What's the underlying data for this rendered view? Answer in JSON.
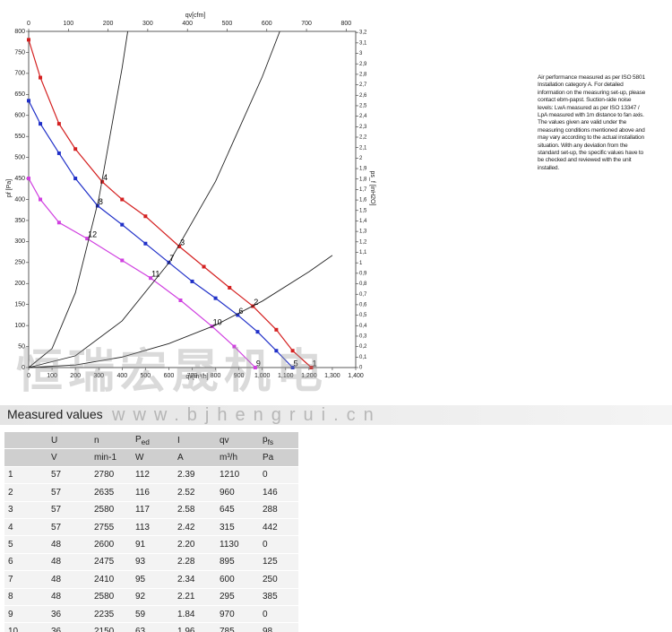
{
  "chart_data": {
    "type": "line",
    "xlabel": "qv[m³/h]",
    "x2label": "qv[cfm]",
    "ylabel": "pf [Pa]",
    "y2label": "ps_f [inH2O]",
    "xlim": [
      0,
      1400
    ],
    "xticks": [
      0,
      100,
      200,
      300,
      400,
      500,
      600,
      700,
      800,
      900,
      {
        "value": 1000,
        "label": "1,000"
      },
      {
        "value": 1100,
        "label": "1,100"
      },
      {
        "value": 1200,
        "label": "1,200"
      },
      {
        "value": 1300,
        "label": "1,300"
      },
      {
        "value": 1400,
        "label": "1,400"
      }
    ],
    "x2lim": [
      0,
      824
    ],
    "x2ticks": [
      0,
      100,
      200,
      300,
      400,
      500,
      600,
      700,
      800
    ],
    "ylim": [
      0,
      800
    ],
    "yticks": [
      0,
      50,
      100,
      150,
      200,
      250,
      300,
      350,
      400,
      450,
      500,
      550,
      600,
      650,
      700,
      750,
      800
    ],
    "y2lim": [
      0,
      3.21
    ],
    "y2ticks": [
      0,
      {
        "value": 0.1,
        "label": "0,1"
      },
      {
        "value": 0.2,
        "label": "0,2"
      },
      {
        "value": 0.3,
        "label": "0,3"
      },
      {
        "value": 0.4,
        "label": "0,4"
      },
      {
        "value": 0.5,
        "label": "0,5"
      },
      {
        "value": 0.6,
        "label": "0,6"
      },
      {
        "value": 0.7,
        "label": "0,7"
      },
      {
        "value": 0.8,
        "label": "0,8"
      },
      {
        "value": 0.9,
        "label": "0,9"
      },
      1,
      {
        "value": 1.1,
        "label": "1,1"
      },
      {
        "value": 1.2,
        "label": "1,2"
      },
      {
        "value": 1.3,
        "label": "1,3"
      },
      {
        "value": 1.4,
        "label": "1,4"
      },
      {
        "value": 1.5,
        "label": "1,5"
      },
      {
        "value": 1.6,
        "label": "1,6"
      },
      {
        "value": 1.7,
        "label": "1,7"
      },
      {
        "value": 1.8,
        "label": "1,8"
      },
      {
        "value": 1.9,
        "label": "1,9"
      },
      2,
      {
        "value": 2.1,
        "label": "2,1"
      },
      {
        "value": 2.2,
        "label": "2,2"
      },
      {
        "value": 2.3,
        "label": "2,3"
      },
      {
        "value": 2.4,
        "label": "2,4"
      },
      {
        "value": 2.5,
        "label": "2,5"
      },
      {
        "value": 2.6,
        "label": "2,6"
      },
      {
        "value": 2.7,
        "label": "2,7"
      },
      {
        "value": 2.8,
        "label": "2,8"
      },
      {
        "value": 2.9,
        "label": "2,9"
      },
      3,
      {
        "value": 3.1,
        "label": "3,1"
      },
      {
        "value": 3.2,
        "label": "3,2"
      }
    ],
    "series": [
      {
        "color": "#d42020",
        "markers": true,
        "x": [
          0,
          50,
          130,
          200,
          315,
          400,
          500,
          645,
          750,
          860,
          960,
          1060,
          1130,
          1210
        ],
        "values": [
          780,
          690,
          580,
          520,
          442,
          400,
          360,
          288,
          240,
          190,
          146,
          90,
          40,
          0
        ]
      },
      {
        "color": "#2030c8",
        "markers": true,
        "x": [
          0,
          50,
          130,
          200,
          295,
          400,
          500,
          600,
          700,
          800,
          895,
          980,
          1060,
          1130
        ],
        "values": [
          635,
          580,
          510,
          450,
          385,
          340,
          295,
          250,
          205,
          165,
          125,
          85,
          40,
          0
        ]
      },
      {
        "color": "#d040e0",
        "markers": true,
        "x": [
          0,
          50,
          130,
          250,
          400,
          522,
          650,
          785,
          880,
          970
        ],
        "values": [
          450,
          400,
          345,
          307,
          255,
          213,
          160,
          98,
          50,
          0
        ]
      },
      {
        "color": "#222222",
        "markers": false,
        "x": [
          0,
          100,
          200,
          300,
          400,
          424
        ],
        "values": [
          0,
          45,
          178,
          401,
          713,
          800
        ]
      },
      {
        "color": "#222222",
        "markers": false,
        "x": [
          0,
          200,
          400,
          600,
          800,
          1000,
          1075
        ],
        "values": [
          0,
          28,
          111,
          249,
          443,
          692,
          800
        ]
      },
      {
        "color": "#222222",
        "markers": false,
        "x": [
          0,
          200,
          400,
          600,
          800,
          1000,
          1200,
          1300
        ],
        "values": [
          0,
          6,
          25,
          57,
          101,
          158,
          228,
          267
        ]
      }
    ],
    "points": [
      {
        "label": "1",
        "x": 1210,
        "y": 0
      },
      {
        "label": "2",
        "x": 960,
        "y": 146
      },
      {
        "label": "3",
        "x": 645,
        "y": 288
      },
      {
        "label": "4",
        "x": 315,
        "y": 442
      },
      {
        "label": "5",
        "x": 1130,
        "y": 0
      },
      {
        "label": "6",
        "x": 895,
        "y": 125
      },
      {
        "label": "7",
        "x": 600,
        "y": 250
      },
      {
        "label": "8",
        "x": 295,
        "y": 385
      },
      {
        "label": "9",
        "x": 970,
        "y": 0
      },
      {
        "label": "10",
        "x": 785,
        "y": 98
      },
      {
        "label": "11",
        "x": 522,
        "y": 213
      },
      {
        "label": "12",
        "x": 250,
        "y": 307
      }
    ]
  },
  "note": [
    "Air performance measured as per ISO 5801",
    "Installation category A. For detailed",
    "information on the measuring set-up, please",
    "contact ebm-papst. Suction-side noise",
    "levels: LwA measured as per ISO 13347 /",
    "LpA measured with 1m distance to fan axis.",
    "The values given are valid under the",
    "measuring conditions mentioned above and",
    "may vary according to the actual installation",
    "situation. With any deviation from the",
    "standard set-up, the specific values have to",
    "be checked and reviewed with the unit",
    "installed."
  ],
  "watermark": {
    "text": "恒瑞宏晟机电",
    "url": "www.bjhengrui.cn"
  },
  "table": {
    "title": "Measured values",
    "headers": [
      {
        "text": "U"
      },
      {
        "text": "n"
      },
      {
        "text": "P",
        "sub": "ed"
      },
      {
        "text": "I"
      },
      {
        "text": "qv"
      },
      {
        "text": "p",
        "sub": "fs"
      }
    ],
    "units": [
      "V",
      "min-1",
      "W",
      "A",
      "m³/h",
      "Pa"
    ],
    "rows": [
      [
        "1",
        "57",
        "2780",
        "112",
        "2.39",
        "1210",
        "0"
      ],
      [
        "2",
        "57",
        "2635",
        "116",
        "2.52",
        "960",
        "146"
      ],
      [
        "3",
        "57",
        "2580",
        "117",
        "2.58",
        "645",
        "288"
      ],
      [
        "4",
        "57",
        "2755",
        "113",
        "2.42",
        "315",
        "442"
      ],
      [
        "5",
        "48",
        "2600",
        "91",
        "2.20",
        "1130",
        "0"
      ],
      [
        "6",
        "48",
        "2475",
        "93",
        "2.28",
        "895",
        "125"
      ],
      [
        "7",
        "48",
        "2410",
        "95",
        "2.34",
        "600",
        "250"
      ],
      [
        "8",
        "48",
        "2580",
        "92",
        "2.21",
        "295",
        "385"
      ],
      [
        "9",
        "36",
        "2235",
        "59",
        "1.84",
        "970",
        "0"
      ],
      [
        "10",
        "36",
        "2150",
        "63",
        "1.96",
        "785",
        "98"
      ]
    ]
  }
}
